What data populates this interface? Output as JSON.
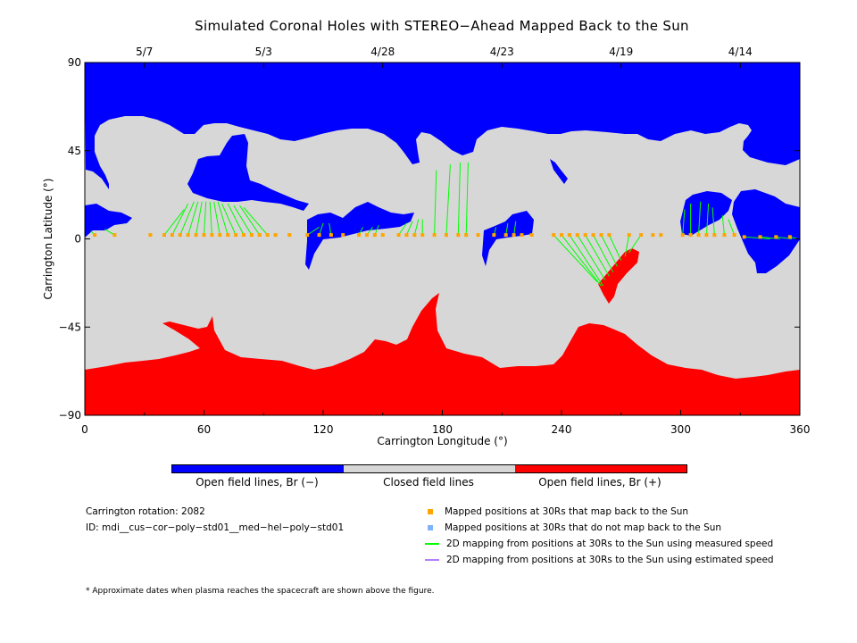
{
  "title": "Simulated Coronal Holes with STEREO−Ahead Mapped Back to the Sun",
  "colors": {
    "open_negative": "#0000ff",
    "closed": "#d7d7d7",
    "open_positive": "#ff0000",
    "mapped_back": "#ffa500",
    "not_mapped_back": "#7fb2ff",
    "measured_speed": "#00ff00",
    "estimated_speed": "#b57fff"
  },
  "chart_data": {
    "type": "map",
    "xlabel": "Carrington Longitude (°)",
    "ylabel": "Carrington Latitude (°)",
    "xlim": [
      0,
      360
    ],
    "ylim": [
      -90,
      90
    ],
    "x_ticks": [
      0,
      60,
      120,
      180,
      240,
      300,
      360
    ],
    "y_ticks": [
      90,
      45,
      0,
      -45,
      -90
    ],
    "y_tick_labels": [
      "90",
      "45",
      "0",
      "−45",
      "−90"
    ],
    "top_axis_dates": [
      {
        "label": "5/7",
        "lon": 30
      },
      {
        "label": "5/3",
        "lon": 90
      },
      {
        "label": "4/28",
        "lon": 150
      },
      {
        "label": "4/23",
        "lon": 210
      },
      {
        "label": "4/19",
        "lon": 270
      },
      {
        "label": "4/14",
        "lon": 330
      }
    ],
    "mapped_points": [
      {
        "lon": 5,
        "lat": 2,
        "src_lon": 3,
        "src_lat": 4
      },
      {
        "lon": 15,
        "lat": 2,
        "src_lon": 10,
        "src_lat": 5
      },
      {
        "lon": 33,
        "lat": 2
      },
      {
        "lon": 40,
        "lat": 2,
        "src_lon": 50,
        "src_lat": 15
      },
      {
        "lon": 44,
        "lat": 2,
        "src_lon": 52,
        "src_lat": 18
      },
      {
        "lon": 48,
        "lat": 2,
        "src_lon": 55,
        "src_lat": 19
      },
      {
        "lon": 52,
        "lat": 2,
        "src_lon": 57,
        "src_lat": 19
      },
      {
        "lon": 56,
        "lat": 2,
        "src_lon": 59,
        "src_lat": 19
      },
      {
        "lon": 60,
        "lat": 2,
        "src_lon": 61,
        "src_lat": 19
      },
      {
        "lon": 64,
        "lat": 2,
        "src_lon": 63,
        "src_lat": 19
      },
      {
        "lon": 68,
        "lat": 2,
        "src_lon": 65,
        "src_lat": 19
      },
      {
        "lon": 72,
        "lat": 2,
        "src_lon": 67,
        "src_lat": 19
      },
      {
        "lon": 76,
        "lat": 2,
        "src_lon": 69,
        "src_lat": 18
      },
      {
        "lon": 80,
        "lat": 2,
        "src_lon": 72,
        "src_lat": 18
      },
      {
        "lon": 84,
        "lat": 2,
        "src_lon": 75,
        "src_lat": 17
      },
      {
        "lon": 88,
        "lat": 2,
        "src_lon": 78,
        "src_lat": 17
      },
      {
        "lon": 92,
        "lat": 2,
        "src_lon": 80,
        "src_lat": 16
      },
      {
        "lon": 96,
        "lat": 2
      },
      {
        "lon": 103,
        "lat": 2
      },
      {
        "lon": 112,
        "lat": 2,
        "src_lon": 118,
        "src_lat": 6
      },
      {
        "lon": 118,
        "lat": 2,
        "src_lon": 120,
        "src_lat": 8
      },
      {
        "lon": 124,
        "lat": 2,
        "src_lon": 123,
        "src_lat": 8
      },
      {
        "lon": 130,
        "lat": 2
      },
      {
        "lon": 138,
        "lat": 2,
        "src_lon": 140,
        "src_lat": 6
      },
      {
        "lon": 142,
        "lat": 2,
        "src_lon": 145,
        "src_lat": 6
      },
      {
        "lon": 146,
        "lat": 2,
        "src_lon": 148,
        "src_lat": 7
      },
      {
        "lon": 150,
        "lat": 2
      },
      {
        "lon": 158,
        "lat": 2,
        "src_lon": 162,
        "src_lat": 8
      },
      {
        "lon": 162,
        "lat": 2,
        "src_lon": 165,
        "src_lat": 9
      },
      {
        "lon": 166,
        "lat": 2,
        "src_lon": 168,
        "src_lat": 10
      },
      {
        "lon": 170,
        "lat": 2,
        "src_lon": 170,
        "src_lat": 10
      },
      {
        "lon": 176,
        "lat": 2,
        "src_lon": 177,
        "src_lat": 35
      },
      {
        "lon": 182,
        "lat": 2,
        "src_lon": 184,
        "src_lat": 38
      },
      {
        "lon": 188,
        "lat": 2,
        "src_lon": 189,
        "src_lat": 39
      },
      {
        "lon": 192,
        "lat": 2,
        "src_lon": 193,
        "src_lat": 39
      },
      {
        "lon": 198,
        "lat": 2
      },
      {
        "lon": 206,
        "lat": 2,
        "src_lon": 207,
        "src_lat": 6
      },
      {
        "lon": 212,
        "lat": 2,
        "src_lon": 213,
        "src_lat": 8
      },
      {
        "lon": 216,
        "lat": 2,
        "src_lon": 217,
        "src_lat": 9
      },
      {
        "lon": 220,
        "lat": 2
      },
      {
        "lon": 225,
        "lat": 2
      },
      {
        "lon": 236,
        "lat": 2,
        "src_lon": 258,
        "src_lat": -22
      },
      {
        "lon": 240,
        "lat": 2,
        "src_lon": 260,
        "src_lat": -24
      },
      {
        "lon": 244,
        "lat": 2,
        "src_lon": 261,
        "src_lat": -24
      },
      {
        "lon": 248,
        "lat": 2,
        "src_lon": 262,
        "src_lat": -21
      },
      {
        "lon": 252,
        "lat": 2,
        "src_lon": 264,
        "src_lat": -19
      },
      {
        "lon": 256,
        "lat": 2,
        "src_lon": 266,
        "src_lat": -17
      },
      {
        "lon": 260,
        "lat": 2,
        "src_lon": 268,
        "src_lat": -14
      },
      {
        "lon": 264,
        "lat": 2,
        "src_lon": 270,
        "src_lat": -11
      },
      {
        "lon": 274,
        "lat": 2,
        "src_lon": 272,
        "src_lat": -9
      },
      {
        "lon": 280,
        "lat": 2,
        "src_lon": 274,
        "src_lat": -7
      },
      {
        "lon": 286,
        "lat": 2
      },
      {
        "lon": 290,
        "lat": 2
      },
      {
        "lon": 301,
        "lat": 2,
        "src_lon": 302,
        "src_lat": 15
      },
      {
        "lon": 305,
        "lat": 2,
        "src_lon": 305,
        "src_lat": 18
      },
      {
        "lon": 309,
        "lat": 2,
        "src_lon": 310,
        "src_lat": 19
      },
      {
        "lon": 313,
        "lat": 2,
        "src_lon": 314,
        "src_lat": 18
      },
      {
        "lon": 317,
        "lat": 2,
        "src_lon": 316,
        "src_lat": 16
      },
      {
        "lon": 322,
        "lat": 2,
        "src_lon": 321,
        "src_lat": 12
      },
      {
        "lon": 327,
        "lat": 2,
        "src_lon": 324,
        "src_lat": 10
      },
      {
        "lon": 332,
        "lat": 1,
        "src_lon": 345,
        "src_lat": 0
      },
      {
        "lon": 340,
        "lat": 1,
        "src_lon": 350,
        "src_lat": 0
      },
      {
        "lon": 348,
        "lat": 1,
        "src_lon": 356,
        "src_lat": 0
      },
      {
        "lon": 355,
        "lat": 1,
        "src_lon": 359,
        "src_lat": 0
      }
    ]
  },
  "colorbar": {
    "labels": [
      "Open field lines, Br (−)",
      "Closed field lines",
      "Open field lines, Br (+)"
    ]
  },
  "info": {
    "rotation": "Carrington rotation: 2082",
    "model_id": "ID: mdi__cus−cor−poly−std01__med−hel−poly−std01"
  },
  "legend": [
    {
      "symbol": "square",
      "color_key": "mapped_back",
      "label": "Mapped positions at 30Rs that map back to the Sun"
    },
    {
      "symbol": "square",
      "color_key": "not_mapped_back",
      "label": "Mapped positions at 30Rs that do not map back to the Sun"
    },
    {
      "symbol": "line",
      "color_key": "measured_speed",
      "label": "2D mapping from positions at 30Rs to the Sun using measured speed"
    },
    {
      "symbol": "line",
      "color_key": "estimated_speed",
      "label": "2D mapping from positions at 30Rs to the Sun using estimated speed"
    }
  ],
  "footnote": "* Approximate dates when plasma reaches the spacecraft are shown above the figure."
}
